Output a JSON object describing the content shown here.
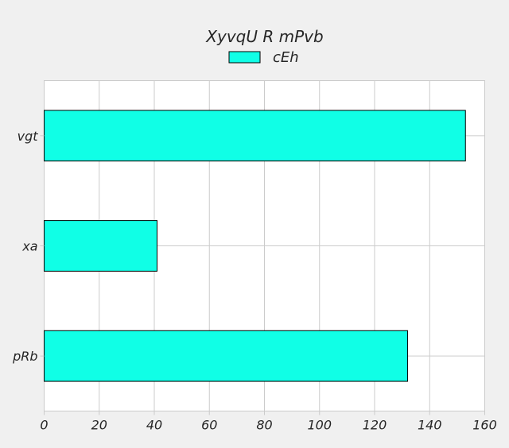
{
  "chart_data": {
    "type": "bar",
    "orientation": "horizontal",
    "title": "XyvqU R mPvb",
    "xlabel": "",
    "ylabel": "",
    "categories": [
      "vgt",
      "xa",
      "pRb"
    ],
    "series": [
      {
        "name": "cEh",
        "values": [
          153,
          41,
          132
        ],
        "color": "#10ffe6"
      }
    ],
    "xlim": [
      0,
      160
    ],
    "xticks": [
      0,
      20,
      40,
      60,
      80,
      100,
      120,
      140,
      160
    ],
    "grid": true,
    "legend_position": "top-center",
    "colors": {
      "background": "#f0f0f0",
      "plot_background": "#ffffff",
      "grid": "#cbcbcb",
      "bar_edge": "#000000"
    }
  }
}
